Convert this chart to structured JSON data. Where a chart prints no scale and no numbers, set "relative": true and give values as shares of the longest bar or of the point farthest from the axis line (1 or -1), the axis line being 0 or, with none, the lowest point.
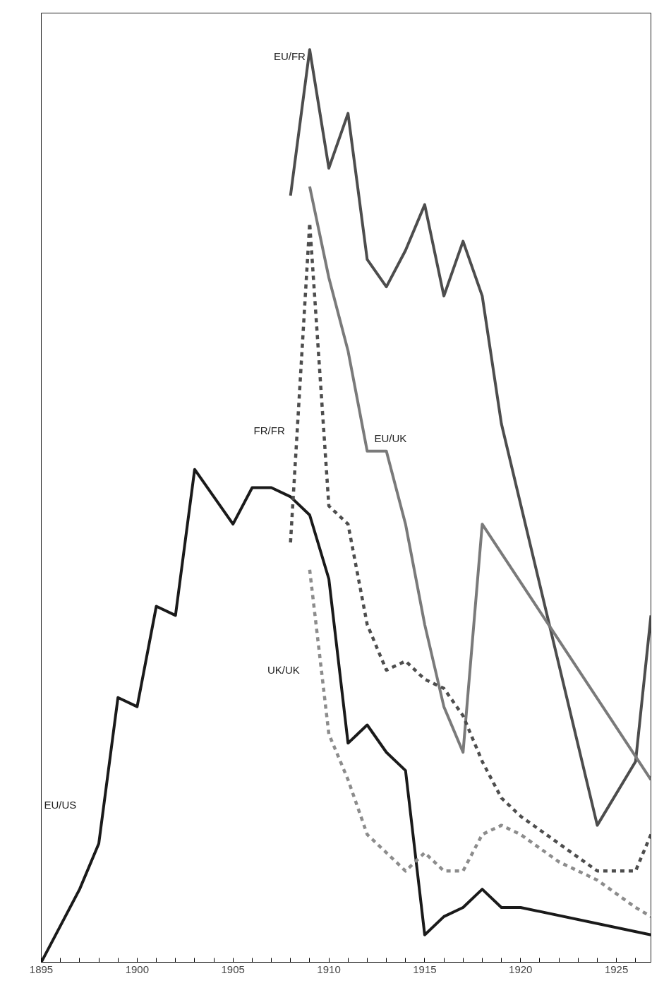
{
  "chart_data": {
    "type": "line",
    "relative": true,
    "grid": false,
    "marker": "none",
    "xlim": [
      1895,
      1926.8
    ],
    "xticks": [
      1895,
      {
        "value": 1896,
        "label": null
      },
      {
        "value": 1897,
        "label": null
      },
      {
        "value": 1898,
        "label": null
      },
      {
        "value": 1899,
        "label": null
      },
      1900,
      {
        "value": 1901,
        "label": null
      },
      {
        "value": 1902,
        "label": null
      },
      {
        "value": 1903,
        "label": null
      },
      {
        "value": 1904,
        "label": null
      },
      1905,
      {
        "value": 1906,
        "label": null
      },
      {
        "value": 1907,
        "label": null
      },
      {
        "value": 1908,
        "label": null
      },
      {
        "value": 1909,
        "label": null
      },
      1910,
      {
        "value": 1911,
        "label": null
      },
      {
        "value": 1912,
        "label": null
      },
      {
        "value": 1913,
        "label": null
      },
      {
        "value": 1914,
        "label": null
      },
      1915,
      {
        "value": 1916,
        "label": null
      },
      {
        "value": 1917,
        "label": null
      },
      {
        "value": 1918,
        "label": null
      },
      {
        "value": 1919,
        "label": null
      },
      1920,
      {
        "value": 1921,
        "label": null
      },
      {
        "value": 1922,
        "label": null
      },
      {
        "value": 1923,
        "label": null
      },
      {
        "value": 1924,
        "label": null
      },
      1925,
      {
        "value": 1926,
        "label": null
      }
    ],
    "series": [
      {
        "name": "EU/US",
        "color": "#1a1a1a",
        "line_style": "solid",
        "x": [
          1895,
          1896,
          1897,
          1898,
          1899,
          1900,
          1901,
          1902,
          1903,
          1904,
          1905,
          1906,
          1907,
          1908,
          1909,
          1910,
          1911,
          1912,
          1913,
          1914,
          1915,
          1916,
          1917,
          1918,
          1919,
          1920,
          1926.8
        ],
        "values": [
          0,
          0.04,
          0.08,
          0.13,
          0.29,
          0.28,
          0.39,
          0.38,
          0.54,
          0.51,
          0.48,
          0.52,
          0.52,
          0.51,
          0.49,
          0.42,
          0.24,
          0.26,
          0.23,
          0.21,
          0.03,
          0.05,
          0.06,
          0.08,
          0.06,
          0.06,
          0.03
        ]
      },
      {
        "name": "EU/FR",
        "color": "#4d4d4d",
        "line_style": "solid",
        "x": [
          1908,
          1909,
          1910,
          1911,
          1912,
          1913,
          1914,
          1915,
          1916,
          1917,
          1918,
          1919,
          1924,
          1926,
          1926.8
        ],
        "values": [
          0.84,
          1.0,
          0.87,
          0.93,
          0.77,
          0.74,
          0.78,
          0.83,
          0.73,
          0.79,
          0.73,
          0.59,
          0.15,
          0.22,
          0.38
        ]
      },
      {
        "name": "EU/UK",
        "color": "#7a7a7a",
        "line_style": "solid",
        "x": [
          1909,
          1910,
          1911,
          1912,
          1913,
          1914,
          1915,
          1916,
          1917,
          1918,
          1926.8
        ],
        "values": [
          0.85,
          0.75,
          0.67,
          0.56,
          0.56,
          0.48,
          0.37,
          0.28,
          0.23,
          0.48,
          0.2
        ]
      },
      {
        "name": "FR/FR",
        "color": "#4d4d4d",
        "line_style": "dashed",
        "x": [
          1908,
          1909,
          1910,
          1911,
          1912,
          1913,
          1914,
          1915,
          1916,
          1917,
          1918,
          1919,
          1920,
          1922,
          1924,
          1926,
          1926.8
        ],
        "values": [
          0.46,
          0.81,
          0.5,
          0.48,
          0.37,
          0.32,
          0.33,
          0.31,
          0.3,
          0.27,
          0.22,
          0.18,
          0.16,
          0.13,
          0.1,
          0.1,
          0.14
        ]
      },
      {
        "name": "UK/UK",
        "color": "#8c8c8c",
        "line_style": "dashed",
        "x": [
          1909,
          1910,
          1911,
          1912,
          1913,
          1914,
          1915,
          1916,
          1917,
          1918,
          1919,
          1920,
          1922,
          1924,
          1926,
          1926.8
        ],
        "values": [
          0.43,
          0.25,
          0.2,
          0.14,
          0.12,
          0.1,
          0.12,
          0.1,
          0.1,
          0.14,
          0.15,
          0.14,
          0.11,
          0.09,
          0.06,
          0.05
        ]
      }
    ]
  }
}
